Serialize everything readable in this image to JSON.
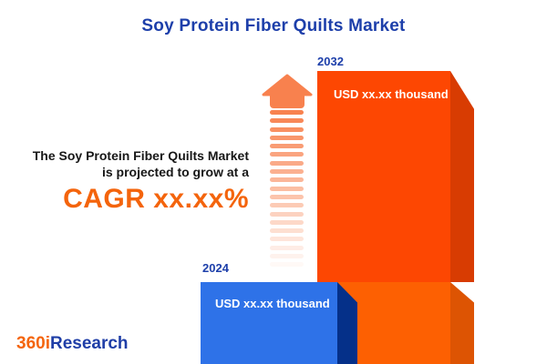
{
  "title": "Soy Protein Fiber Quilts Market",
  "headline": {
    "line1": "The Soy Protein Fiber Quilts Market",
    "line2": "is projected to grow at a",
    "cagr": "CAGR xx.xx%"
  },
  "chart_data": {
    "type": "bar",
    "title": "Soy Protein Fiber Quilts Market",
    "categories": [
      "2024",
      "2032"
    ],
    "values": [
      null,
      null
    ],
    "value_labels": [
      "USD xx.xx thousand",
      "USD xx.xx thousand"
    ],
    "annotation": "CAGR xx.xx%",
    "legend_position": "none",
    "grid": false
  },
  "logo": {
    "part1": "360i",
    "part2": "Research"
  },
  "colors": {
    "title_blue": "#1d3faa",
    "cagr_orange": "#f4640c",
    "bar_2032_front": "#fd4702",
    "bar_2032_side": "#d83c02",
    "bar_2032_base_front": "#fd6002",
    "bar_2032_base_side": "#dd5403",
    "bar_2024_front": "#2e72e8",
    "bar_2024_side": "#053089",
    "arrow_orange": "#f8814e",
    "logo_orange": "#f4650d",
    "logo_blue": "#1f3ea7",
    "text_dark": "#171717"
  }
}
